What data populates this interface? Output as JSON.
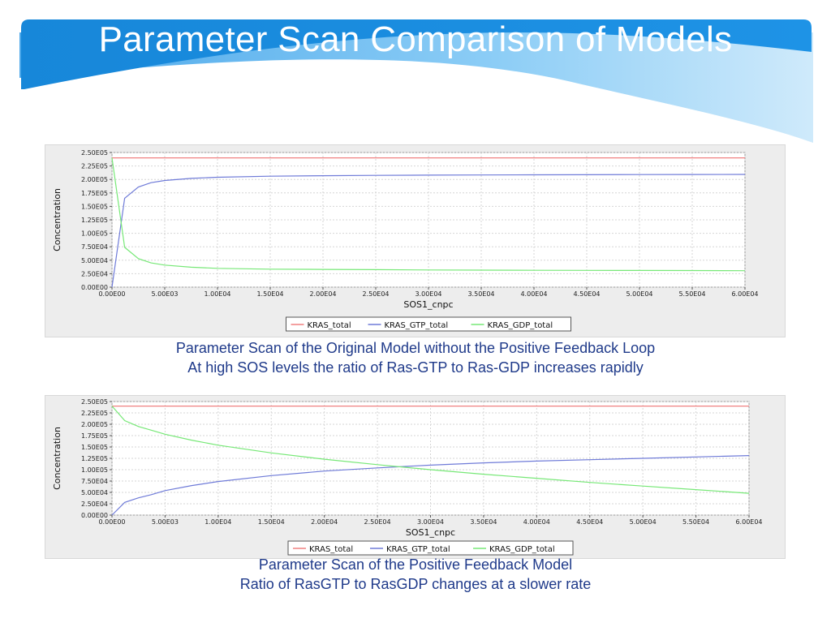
{
  "slide": {
    "title": "Parameter Scan Comparison of Models"
  },
  "captions": [
    {
      "line1": "Parameter Scan of the Original Model without the Positive Feedback Loop",
      "line2": "At high SOS levels the ratio of Ras-GTP to Ras-GDP increases rapidly"
    },
    {
      "line1": "Parameter Scan of the Positive Feedback Model",
      "line2": "Ratio of RasGTP to RasGDP changes at a slower rate"
    }
  ],
  "colors": {
    "banner_dark": "#1787d9",
    "banner_light": "#7cc3f3",
    "caption_text": "#1f3a8a",
    "kras_total": "#f08080",
    "kras_gtp_total": "#6f7bd8",
    "kras_gdp_total": "#77e877"
  },
  "chart_data": [
    {
      "type": "line",
      "xlabel": "SOS1_cnpc",
      "ylabel": "Concentration",
      "xlim": [
        0,
        60000
      ],
      "ylim": [
        0,
        250000
      ],
      "grid": true,
      "legend_position": "bottom-center",
      "xtick_labels": [
        "0.00E00",
        "5.00E03",
        "1.00E04",
        "1.50E04",
        "2.00E04",
        "2.50E04",
        "3.00E04",
        "3.50E04",
        "4.00E04",
        "4.50E04",
        "5.00E04",
        "5.50E04",
        "6.00E04"
      ],
      "ytick_labels": [
        "0.00E00",
        "2.50E04",
        "5.00E04",
        "7.50E04",
        "1.00E05",
        "1.25E05",
        "1.50E05",
        "1.75E05",
        "2.00E05",
        "2.25E05",
        "2.50E05"
      ],
      "x": [
        0,
        1200,
        2500,
        3700,
        5000,
        7500,
        10000,
        15000,
        20000,
        25000,
        30000,
        35000,
        40000,
        45000,
        50000,
        55000,
        60000
      ],
      "series": [
        {
          "name": "KRAS_total",
          "color": "#f08080",
          "values": [
            240000,
            240000,
            240000,
            240000,
            240000,
            240000,
            240000,
            240000,
            240000,
            240000,
            240000,
            240000,
            240000,
            240000,
            240000,
            240000,
            240000
          ]
        },
        {
          "name": "KRAS_GTP_total",
          "color": "#6f7bd8",
          "values": [
            0,
            165000,
            186000,
            194000,
            198000,
            202000,
            204000,
            206000,
            207000,
            207500,
            208000,
            208300,
            208600,
            208800,
            209000,
            209200,
            209400
          ]
        },
        {
          "name": "KRAS_GDP_total",
          "color": "#77e877",
          "values": [
            240000,
            74000,
            53000,
            45000,
            41000,
            37000,
            35000,
            33500,
            33000,
            32500,
            32000,
            31700,
            31400,
            31200,
            31000,
            30800,
            30600
          ]
        }
      ]
    },
    {
      "type": "line",
      "xlabel": "SOS1_cnpc",
      "ylabel": "Concentration",
      "xlim": [
        0,
        60000
      ],
      "ylim": [
        0,
        250000
      ],
      "grid": true,
      "legend_position": "bottom-center",
      "xtick_labels": [
        "0.00E00",
        "5.00E03",
        "1.00E04",
        "1.50E04",
        "2.00E04",
        "2.50E04",
        "3.00E04",
        "3.50E04",
        "4.00E04",
        "4.50E04",
        "5.00E04",
        "5.50E04",
        "6.00E04"
      ],
      "ytick_labels": [
        "0.00E00",
        "2.50E04",
        "5.00E04",
        "7.50E04",
        "1.00E05",
        "1.25E05",
        "1.50E05",
        "1.75E05",
        "2.00E05",
        "2.25E05",
        "2.50E05"
      ],
      "x": [
        0,
        1200,
        2500,
        3700,
        5000,
        7500,
        10000,
        15000,
        20000,
        25000,
        30000,
        35000,
        40000,
        45000,
        50000,
        55000,
        60000
      ],
      "series": [
        {
          "name": "KRAS_total",
          "color": "#f08080",
          "values": [
            240000,
            240000,
            240000,
            240000,
            240000,
            240000,
            240000,
            240000,
            240000,
            240000,
            240000,
            240000,
            240000,
            240000,
            240000,
            240000,
            240000
          ]
        },
        {
          "name": "KRAS_GTP_total",
          "color": "#6f7bd8",
          "values": [
            0,
            28000,
            38000,
            45000,
            54000,
            65000,
            74000,
            87000,
            97000,
            104000,
            110000,
            115000,
            119000,
            122000,
            125000,
            128000,
            131000
          ]
        },
        {
          "name": "KRAS_GDP_total",
          "color": "#77e877",
          "values": [
            240000,
            208000,
            195000,
            187000,
            178000,
            165000,
            154000,
            137000,
            123000,
            111000,
            100000,
            90000,
            81000,
            72000,
            64000,
            56000,
            48000
          ]
        }
      ]
    }
  ]
}
